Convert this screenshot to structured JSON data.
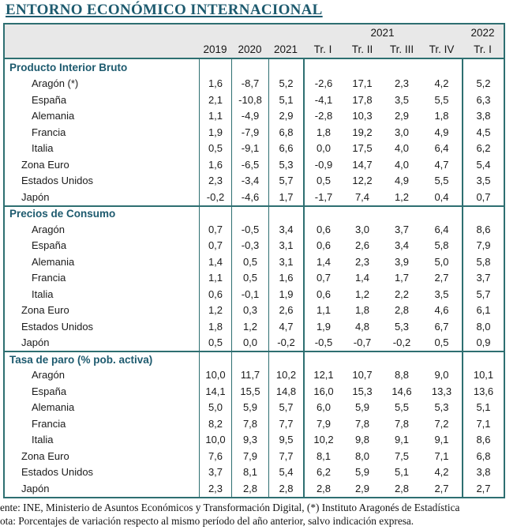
{
  "title": "ENTORNO ECONÓMICO INTERNACIONAL",
  "colors": {
    "accent_border": "#2e6f71",
    "title_text": "#1d5a6e",
    "section_text": "#1d5a6e",
    "header_bg": "#e8e8e8",
    "data_text": "#1b1b1b"
  },
  "table": {
    "year_groups": {
      "g2021": "2021",
      "g2022": "2022"
    },
    "columns": [
      "2019",
      "2020",
      "2021",
      "Tr. I",
      "Tr. II",
      "Tr. III",
      "Tr. IV",
      "Tr. I"
    ],
    "sections": [
      {
        "label": "Producto Interior Bruto",
        "rows": [
          {
            "label": "Aragón (*)",
            "indent": 2,
            "values": [
              "1,6",
              "-8,7",
              "5,2",
              "-2,6",
              "17,1",
              "2,3",
              "4,2",
              "5,2"
            ]
          },
          {
            "label": "España",
            "indent": 2,
            "values": [
              "2,1",
              "-10,8",
              "5,1",
              "-4,1",
              "17,8",
              "3,5",
              "5,5",
              "6,3"
            ]
          },
          {
            "label": "Alemania",
            "indent": 2,
            "values": [
              "1,1",
              "-4,9",
              "2,9",
              "-2,8",
              "10,3",
              "2,9",
              "1,8",
              "3,8"
            ]
          },
          {
            "label": "Francia",
            "indent": 2,
            "values": [
              "1,9",
              "-7,9",
              "6,8",
              "1,8",
              "19,2",
              "3,0",
              "4,9",
              "4,5"
            ]
          },
          {
            "label": "Italia",
            "indent": 2,
            "values": [
              "0,5",
              "-9,1",
              "6,6",
              "0,0",
              "17,5",
              "4,0",
              "6,4",
              "6,2"
            ]
          },
          {
            "label": "Zona Euro",
            "indent": 1,
            "values": [
              "1,6",
              "-6,5",
              "5,3",
              "-0,9",
              "14,7",
              "4,0",
              "4,7",
              "5,4"
            ]
          },
          {
            "label": "Estados Unidos",
            "indent": 1,
            "values": [
              "2,3",
              "-3,4",
              "5,7",
              "0,5",
              "12,2",
              "4,9",
              "5,5",
              "3,5"
            ]
          },
          {
            "label": "Japón",
            "indent": 1,
            "values": [
              "-0,2",
              "-4,6",
              "1,7",
              "-1,7",
              "7,4",
              "1,2",
              "0,4",
              "0,7"
            ]
          }
        ]
      },
      {
        "label": "Precios de Consumo",
        "rows": [
          {
            "label": "Aragón",
            "indent": 2,
            "values": [
              "0,7",
              "-0,5",
              "3,4",
              "0,6",
              "3,0",
              "3,7",
              "6,4",
              "8,6"
            ]
          },
          {
            "label": "España",
            "indent": 2,
            "values": [
              "0,7",
              "-0,3",
              "3,1",
              "0,6",
              "2,6",
              "3,4",
              "5,8",
              "7,9"
            ]
          },
          {
            "label": "Alemania",
            "indent": 2,
            "values": [
              "1,4",
              "0,5",
              "3,1",
              "1,4",
              "2,3",
              "3,9",
              "5,0",
              "5,8"
            ]
          },
          {
            "label": "Francia",
            "indent": 2,
            "values": [
              "1,1",
              "0,5",
              "1,6",
              "0,7",
              "1,4",
              "1,7",
              "2,7",
              "3,7"
            ]
          },
          {
            "label": "Italia",
            "indent": 2,
            "values": [
              "0,6",
              "-0,1",
              "1,9",
              "0,6",
              "1,2",
              "2,2",
              "3,5",
              "5,7"
            ]
          },
          {
            "label": "Zona Euro",
            "indent": 1,
            "values": [
              "1,2",
              "0,3",
              "2,6",
              "1,1",
              "1,8",
              "2,8",
              "4,6",
              "6,1"
            ]
          },
          {
            "label": "Estados Unidos",
            "indent": 1,
            "values": [
              "1,8",
              "1,2",
              "4,7",
              "1,9",
              "4,8",
              "5,3",
              "6,7",
              "8,0"
            ]
          },
          {
            "label": "Japón",
            "indent": 1,
            "values": [
              "0,5",
              "0,0",
              "-0,2",
              "-0,5",
              "-0,7",
              "-0,2",
              "0,5",
              "0,9"
            ]
          }
        ]
      },
      {
        "label": "Tasa de paro (% pob. activa)",
        "rows": [
          {
            "label": "Aragón",
            "indent": 2,
            "values": [
              "10,0",
              "11,7",
              "10,2",
              "12,1",
              "10,7",
              "8,8",
              "9,0",
              "10,1"
            ]
          },
          {
            "label": "España",
            "indent": 2,
            "values": [
              "14,1",
              "15,5",
              "14,8",
              "16,0",
              "15,3",
              "14,6",
              "13,3",
              "13,6"
            ]
          },
          {
            "label": "Alemania",
            "indent": 2,
            "values": [
              "5,0",
              "5,9",
              "5,7",
              "6,0",
              "5,9",
              "5,5",
              "5,3",
              "5,1"
            ]
          },
          {
            "label": "Francia",
            "indent": 2,
            "values": [
              "8,2",
              "7,8",
              "7,7",
              "7,9",
              "7,8",
              "7,8",
              "7,2",
              "7,1"
            ]
          },
          {
            "label": "Italia",
            "indent": 2,
            "values": [
              "10,0",
              "9,3",
              "9,5",
              "10,2",
              "9,8",
              "9,1",
              "9,1",
              "8,6"
            ]
          },
          {
            "label": "Zona Euro",
            "indent": 1,
            "values": [
              "7,6",
              "7,9",
              "7,7",
              "8,1",
              "8,0",
              "7,5",
              "7,1",
              "6,8"
            ]
          },
          {
            "label": "Estados Unidos",
            "indent": 1,
            "values": [
              "3,7",
              "8,1",
              "5,4",
              "6,2",
              "5,9",
              "5,1",
              "4,2",
              "3,8"
            ]
          },
          {
            "label": "Japón",
            "indent": 1,
            "values": [
              "2,3",
              "2,8",
              "2,8",
              "2,8",
              "2,9",
              "2,8",
              "2,7",
              "2,7"
            ]
          }
        ]
      }
    ]
  },
  "footnotes": {
    "source": "ente: INE, Ministerio de Asuntos Económicos y Transformación Digital, (*) Instituto Aragonés de Estadística",
    "note": "ota: Porcentajes de variación respecto al mismo período del año anterior, salvo indicación expresa."
  }
}
